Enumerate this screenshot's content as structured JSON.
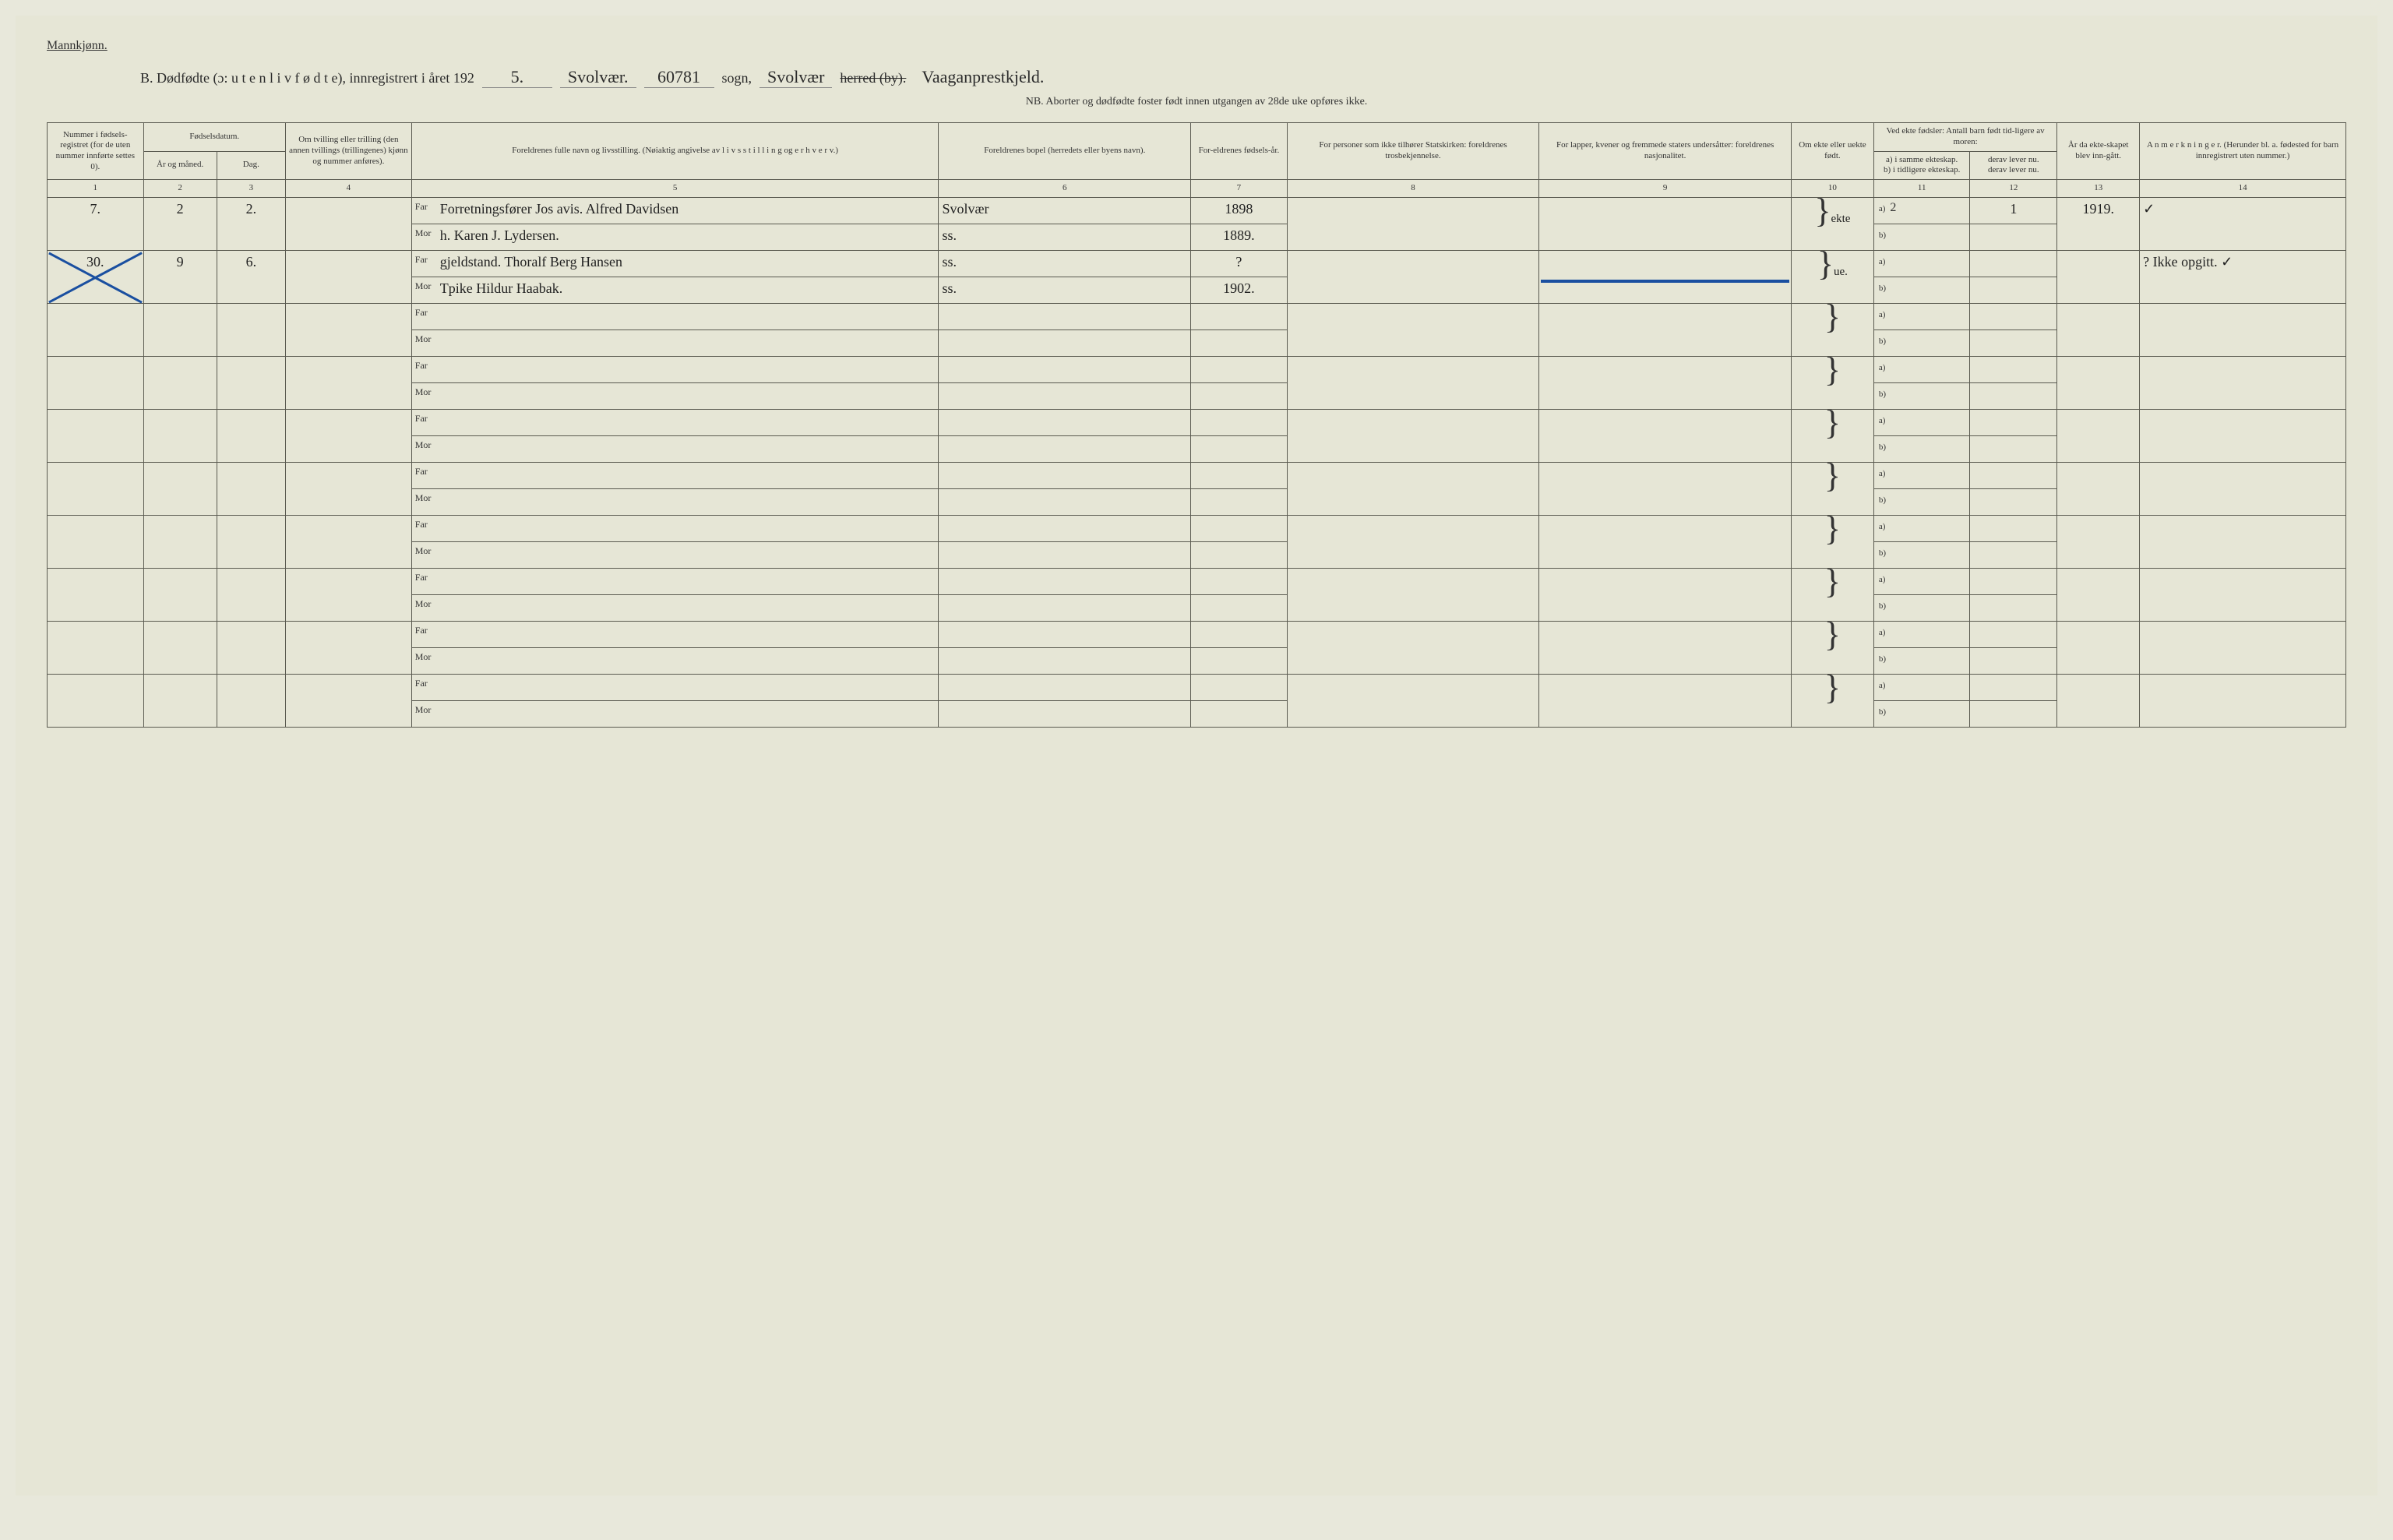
{
  "header": {
    "top_label": "Mannkjønn.",
    "title_prefix": "B.  Dødfødte (ɔ:  u t e n  l i v  f ø d t e),  innregistrert i året 192",
    "year_suffix": "5.",
    "sogn_hand": "Svolvær.",
    "reg_number": "60781",
    "sogn_label": "sogn,",
    "herred_hand": "Svolvær",
    "herred_label": "herred (by).",
    "herred_struck": true,
    "right_hand": "Vaaganprestkjeld.",
    "sub_note": "NB.  Aborter og dødfødte foster født innen utgangen av 28de uke opføres ikke."
  },
  "columns": {
    "c1": "Nummer i fødsels-registret (for de uten nummer innførte settes 0).",
    "c2_top": "Fødselsdatum.",
    "c2a": "År og måned.",
    "c2b": "Dag.",
    "c4": "Om tvilling eller trilling (den annen tvillings (trillingenes) kjønn og nummer anføres).",
    "c5": "Foreldrenes fulle navn og livsstilling. (Nøiaktig angivelse av l i v s s t i l l i n g  og e r h v e r v.)",
    "c6": "Foreldrenes bopel (herredets eller byens navn).",
    "c7": "For-eldrenes fødsels-år.",
    "c8": "For personer som ikke tilhører Statskirken: foreldrenes trosbekjennelse.",
    "c9": "For lapper, kvener og fremmede staters undersåtter: foreldrenes nasjonalitet.",
    "c10": "Om ekte eller uekte født.",
    "c11_top": "Ved ekte fødsler: Antall barn født tid-ligere av moren:",
    "c11a": "a) i samme ekteskap.",
    "c11b": "b) i tidligere ekteskap.",
    "c12_top": "",
    "c12a": "derav lever nu.",
    "c12b": "derav lever nu.",
    "c13": "År da ekte-skapet blev inn-gått.",
    "c14": "A n m e r k n i n g e r. (Herunder bl. a. fødested for barn innregistrert uten nummer.)",
    "nums": [
      "1",
      "2",
      "3",
      "4",
      "5",
      "6",
      "7",
      "8",
      "9",
      "10",
      "11",
      "12",
      "13",
      "14"
    ]
  },
  "labels": {
    "far": "Far",
    "mor": "Mor",
    "a": "a)",
    "b": "b)"
  },
  "rows": [
    {
      "num": "7.",
      "ym": "2",
      "day": "2.",
      "twin": "",
      "far_name": "Forretningsfører Jos avis. Alfred Davidsen",
      "mor_name": "h. Karen J. Lydersen.",
      "far_bopel": "Svolvær",
      "mor_bopel": "ss.",
      "far_year": "1898",
      "mor_year": "1889.",
      "col8": "",
      "col9": "",
      "ekte": "ekte",
      "c11a": "2",
      "c12a": "1",
      "c11b": "",
      "c12b": "",
      "c13": "1919.",
      "c14": "✓",
      "crossed": false,
      "blue_strike": false
    },
    {
      "num": "30.",
      "ym": "9",
      "day": "6.",
      "twin": "",
      "far_name": "gjeldstand. Thoralf Berg Hansen",
      "mor_name": "Tpike Hildur Haabak.",
      "far_bopel": "ss.",
      "mor_bopel": "ss.",
      "far_year": "?",
      "mor_year": "1902.",
      "col8": "",
      "col9": "",
      "ekte": "ue.",
      "c11a": "",
      "c12a": "",
      "c11b": "",
      "c12b": "",
      "c13": "",
      "c14": "? Ikke opgitt. ✓",
      "crossed": true,
      "blue_strike": true
    }
  ],
  "empty_row_count": 8,
  "colwidths": {
    "c1": "4.2%",
    "c2a": "3.2%",
    "c2b": "3.0%",
    "c4": "5.5%",
    "c5": "23%",
    "c6": "11%",
    "c7": "4.2%",
    "c8": "11%",
    "c9": "11%",
    "c10": "3.6%",
    "c11": "4.2%",
    "c12": "3.8%",
    "c13": "3.6%",
    "c14": "9%"
  },
  "colors": {
    "paper": "#e6e6d6",
    "ink": "#2a2a2a",
    "rule": "#5a5a50",
    "blue": "#1a4fa0"
  }
}
